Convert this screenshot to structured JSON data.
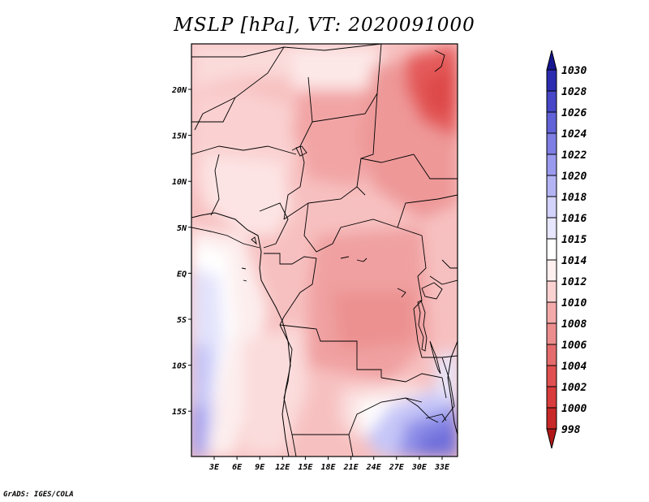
{
  "title": "MSLP [hPa], VT: 2020091000",
  "footer": "GrADS: IGES/COLA",
  "map": {
    "lat_ticks": [
      "20N",
      "15N",
      "10N",
      "5N",
      "EQ",
      "5S",
      "10S",
      "15S"
    ],
    "lon_ticks": [
      "3E",
      "6E",
      "9E",
      "12E",
      "15E",
      "18E",
      "21E",
      "24E",
      "27E",
      "30E",
      "33E"
    ]
  },
  "colorbar": {
    "labels": [
      "998",
      "1000",
      "1002",
      "1004",
      "1006",
      "1008",
      "1010",
      "1012",
      "1014",
      "1015",
      "1016",
      "1018",
      "1020",
      "1022",
      "1024",
      "1026",
      "1028",
      "1030"
    ],
    "colors": [
      "#b01818",
      "#c82828",
      "#d83c3c",
      "#e05050",
      "#e46c6c",
      "#ec8e8e",
      "#f4aaaa",
      "#fad2d2",
      "#fff0f0",
      "#ffffff",
      "#e6e6fc",
      "#d2d2fa",
      "#b4b4f4",
      "#9a9aee",
      "#7e7ee4",
      "#6262d8",
      "#4646c6",
      "#2c2cb0",
      "#161690"
    ]
  }
}
